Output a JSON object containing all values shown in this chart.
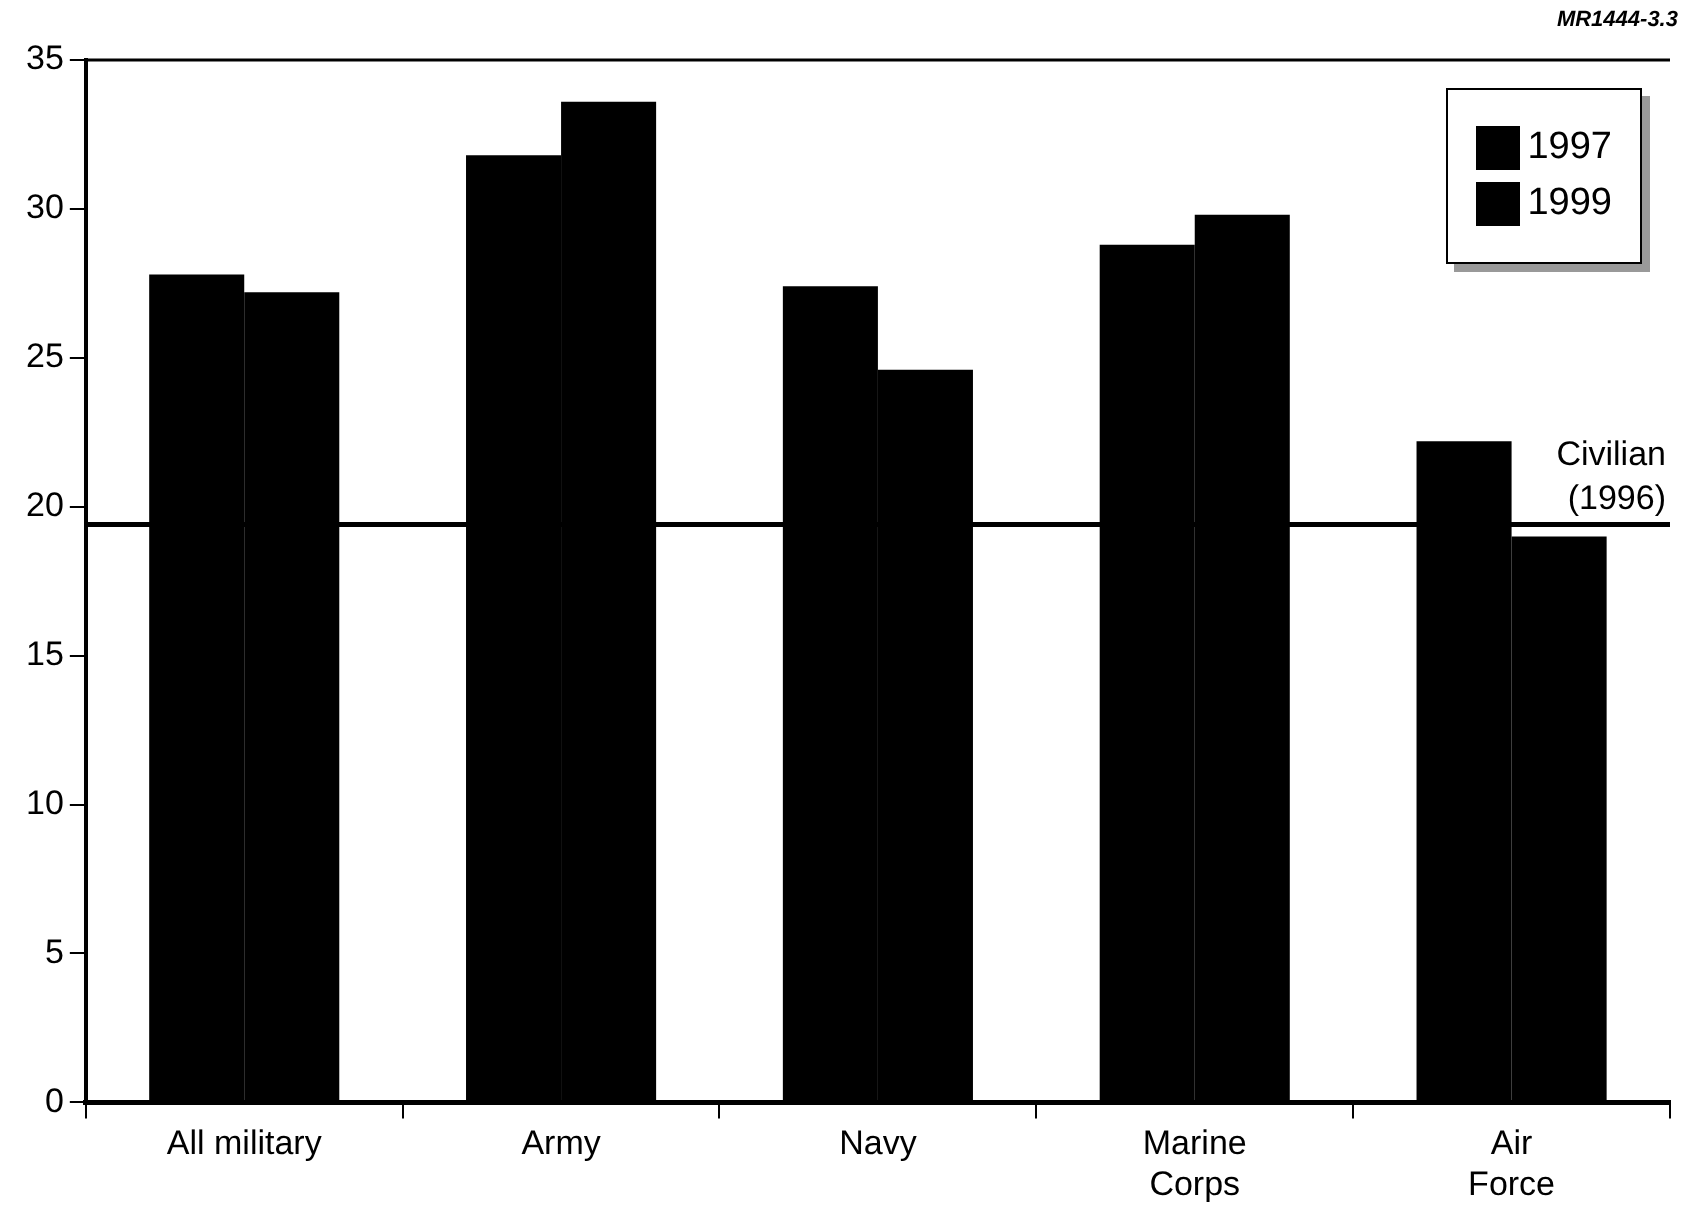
{
  "chart_data": {
    "type": "bar",
    "categories": [
      "All military",
      "Army",
      "Navy",
      "Marine Corps",
      "Air Force"
    ],
    "series": [
      {
        "name": "1997",
        "color": "#000000",
        "values": [
          27.8,
          31.8,
          27.4,
          28.8,
          22.2
        ]
      },
      {
        "name": "1999",
        "color": "#000000",
        "values": [
          27.2,
          33.6,
          24.6,
          29.8,
          19.0
        ]
      }
    ],
    "ylim": [
      0,
      35
    ],
    "yticks": [
      0,
      5,
      10,
      15,
      20,
      25,
      30,
      35
    ],
    "grid": false,
    "legend": "top right",
    "ref_lines": [
      {
        "axis": "y",
        "value": 19.4,
        "label": "Civilian (1996)"
      }
    ],
    "annotations": [
      "MR1444-3.3"
    ]
  }
}
